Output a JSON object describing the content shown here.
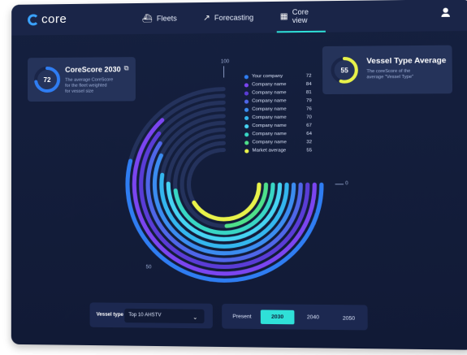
{
  "nav": {
    "logo": "core",
    "items": [
      {
        "label": "Fleets",
        "icon": "ship-icon",
        "glyph": "⛴"
      },
      {
        "label": "Forecasting",
        "icon": "trend-icon",
        "glyph": "↗"
      },
      {
        "label": "Core view",
        "icon": "grid-icon",
        "glyph": "▦"
      }
    ],
    "active": "Core view"
  },
  "corescore": {
    "title": "CoreScore 2030",
    "value": "72",
    "fraction": 0.72,
    "description": [
      "The average CoreScore",
      "for the fleet weighted",
      "for vessel size"
    ]
  },
  "vessel_avg": {
    "title": "Vessel Type Average",
    "value": "55",
    "fraction": 0.55,
    "description": [
      "The coreScore of the",
      "average \"Vessel Type\""
    ]
  },
  "chart_data": {
    "type": "radial-bar",
    "axis_labels": {
      "top": "100",
      "right": "0",
      "bottom": "50"
    },
    "series": [
      {
        "name": "Your company",
        "value": 72,
        "color": "#2f7df2"
      },
      {
        "name": "Company name",
        "value": 84,
        "color": "#7b45f0"
      },
      {
        "name": "Company name",
        "value": 81,
        "color": "#5a3cd6"
      },
      {
        "name": "Company name",
        "value": 79,
        "color": "#4f66e8"
      },
      {
        "name": "Company name",
        "value": 76,
        "color": "#3b8cf0"
      },
      {
        "name": "Company name",
        "value": 70,
        "color": "#34b6ee"
      },
      {
        "name": "Company name",
        "value": 67,
        "color": "#46d3f2"
      },
      {
        "name": "Company name",
        "value": 64,
        "color": "#38d6c4"
      },
      {
        "name": "Company name",
        "value": 32,
        "color": "#4ee08a"
      },
      {
        "name": "Market average",
        "value": 55,
        "color": "#e8f24a"
      }
    ],
    "track_color": "#24325c"
  },
  "filters": {
    "vessel_type_label": "Vessel type",
    "vessel_type_value": "Top 10 AHSTV",
    "periods": [
      "Present",
      "2030",
      "2040",
      "2050"
    ],
    "active_period": "2030"
  }
}
